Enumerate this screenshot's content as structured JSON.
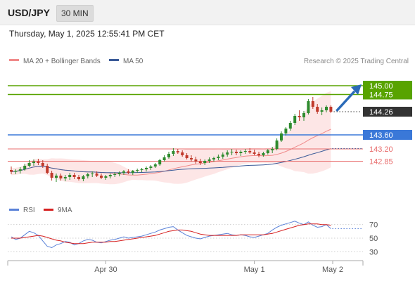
{
  "header": {
    "symbol": "USD/JPY",
    "timeframe": "30 MIN",
    "datetime": "Thursday, May 1, 2025 12:55:41 PM CET"
  },
  "credit": "Research © 2025 Trading Central",
  "colors": {
    "bull": "#2e8b2e",
    "bear": "#c0392b",
    "resistance": "#58a300",
    "pivot": "#3a78d8",
    "support": "#e86c6c",
    "ma20": "#f08a8a",
    "ma50": "#3a5a98",
    "band_fill": "#fde2e2",
    "rsi": "#5a82d8",
    "rsi_ma": "#d62020",
    "arrow": "#2a6ab8",
    "current": "#333333"
  },
  "chart_data": [
    {
      "type": "candlestick",
      "title": "",
      "legend": [
        "MA 20 + Bollinger Bands",
        "MA 50"
      ],
      "legend_placement": "top-left",
      "ylim": [
        142.0,
        145.4
      ],
      "levels": [
        {
          "value": 145.0,
          "label": "145.00",
          "kind": "resistance"
        },
        {
          "value": 144.75,
          "label": "144.75",
          "kind": "resistance"
        },
        {
          "value": 143.6,
          "label": "143.60",
          "kind": "pivot"
        },
        {
          "value": 143.2,
          "label": "143.20",
          "kind": "support"
        },
        {
          "value": 142.85,
          "label": "142.85",
          "kind": "support"
        }
      ],
      "current_price": {
        "value": 144.26,
        "label": "144.26"
      },
      "candles": [
        [
          142.6,
          142.7,
          142.48,
          142.55
        ],
        [
          142.55,
          142.62,
          142.48,
          142.58
        ],
        [
          142.58,
          142.68,
          142.5,
          142.62
        ],
        [
          142.62,
          142.78,
          142.58,
          142.72
        ],
        [
          142.72,
          142.88,
          142.68,
          142.8
        ],
        [
          142.8,
          142.9,
          142.72,
          142.84
        ],
        [
          142.84,
          142.92,
          142.74,
          142.8
        ],
        [
          142.8,
          142.88,
          142.66,
          142.72
        ],
        [
          142.72,
          142.78,
          142.48,
          142.52
        ],
        [
          142.52,
          142.58,
          142.3,
          142.38
        ],
        [
          142.38,
          142.5,
          142.26,
          142.44
        ],
        [
          142.44,
          142.5,
          142.3,
          142.36
        ],
        [
          142.36,
          142.46,
          142.28,
          142.4
        ],
        [
          142.4,
          142.52,
          142.32,
          142.46
        ],
        [
          142.46,
          142.52,
          142.34,
          142.4
        ],
        [
          142.4,
          142.46,
          142.3,
          142.34
        ],
        [
          142.34,
          142.46,
          142.28,
          142.42
        ],
        [
          142.42,
          142.52,
          142.36,
          142.48
        ],
        [
          142.48,
          142.56,
          142.4,
          142.5
        ],
        [
          142.5,
          142.56,
          142.4,
          142.44
        ],
        [
          142.44,
          142.5,
          142.34,
          142.38
        ],
        [
          142.38,
          142.46,
          142.32,
          142.42
        ],
        [
          142.42,
          142.5,
          142.36,
          142.46
        ],
        [
          142.46,
          142.54,
          142.4,
          142.48
        ],
        [
          142.48,
          142.56,
          142.42,
          142.52
        ],
        [
          142.52,
          142.6,
          142.46,
          142.56
        ],
        [
          142.56,
          142.62,
          142.48,
          142.52
        ],
        [
          142.52,
          142.6,
          142.46,
          142.58
        ],
        [
          142.58,
          142.64,
          142.52,
          142.6
        ],
        [
          142.6,
          142.66,
          142.54,
          142.62
        ],
        [
          142.62,
          142.7,
          142.56,
          142.66
        ],
        [
          142.66,
          142.74,
          142.6,
          142.7
        ],
        [
          142.7,
          142.8,
          142.66,
          142.76
        ],
        [
          142.76,
          142.92,
          142.72,
          142.88
        ],
        [
          142.88,
          143.02,
          142.84,
          142.96
        ],
        [
          142.96,
          143.12,
          142.92,
          143.06
        ],
        [
          143.06,
          143.22,
          143.0,
          143.14
        ],
        [
          143.14,
          143.2,
          143.06,
          143.1
        ],
        [
          143.1,
          143.16,
          142.98,
          143.02
        ],
        [
          143.02,
          143.08,
          142.9,
          142.94
        ],
        [
          142.94,
          143.02,
          142.84,
          142.9
        ],
        [
          142.9,
          142.98,
          142.78,
          142.84
        ],
        [
          142.84,
          142.92,
          142.74,
          142.8
        ],
        [
          142.8,
          142.9,
          142.74,
          142.86
        ],
        [
          142.86,
          142.96,
          142.8,
          142.9
        ],
        [
          142.9,
          142.98,
          142.84,
          142.94
        ],
        [
          142.94,
          143.04,
          142.88,
          142.98
        ],
        [
          142.98,
          143.1,
          142.92,
          143.04
        ],
        [
          143.04,
          143.16,
          142.98,
          143.1
        ],
        [
          143.1,
          143.2,
          143.02,
          143.12
        ],
        [
          143.12,
          143.18,
          143.02,
          143.08
        ],
        [
          143.08,
          143.16,
          143.0,
          143.12
        ],
        [
          143.12,
          143.2,
          143.06,
          143.14
        ],
        [
          143.14,
          143.22,
          143.06,
          143.1
        ],
        [
          143.1,
          143.18,
          143.02,
          143.06
        ],
        [
          143.06,
          143.12,
          142.96,
          143.02
        ],
        [
          143.02,
          143.12,
          142.98,
          143.08
        ],
        [
          143.08,
          143.2,
          143.04,
          143.16
        ],
        [
          143.16,
          143.26,
          143.08,
          143.2
        ],
        [
          143.2,
          143.5,
          143.16,
          143.44
        ],
        [
          143.44,
          143.7,
          143.4,
          143.64
        ],
        [
          143.64,
          143.82,
          143.58,
          143.78
        ],
        [
          143.78,
          144.0,
          143.72,
          143.94
        ],
        [
          143.94,
          144.2,
          143.88,
          144.14
        ],
        [
          144.14,
          144.3,
          144.0,
          144.1
        ],
        [
          144.1,
          144.28,
          144.0,
          144.22
        ],
        [
          144.22,
          144.62,
          144.18,
          144.56
        ],
        [
          144.56,
          144.68,
          144.34,
          144.4
        ],
        [
          144.4,
          144.48,
          144.2,
          144.26
        ],
        [
          144.26,
          144.38,
          144.16,
          144.3
        ],
        [
          144.3,
          144.44,
          144.24,
          144.4
        ],
        [
          144.4,
          144.44,
          144.22,
          144.26
        ]
      ]
    },
    {
      "type": "line",
      "title": "",
      "legend": [
        "RSI",
        "9MA"
      ],
      "legend_placement": "top-left",
      "ylim": [
        20,
        80
      ],
      "yticks": [
        30,
        50,
        70
      ],
      "rsi": [
        52,
        48,
        50,
        55,
        60,
        58,
        54,
        46,
        38,
        36,
        40,
        42,
        45,
        44,
        40,
        42,
        46,
        48,
        47,
        44,
        43,
        45,
        47,
        48,
        50,
        52,
        50,
        51,
        52,
        53,
        55,
        57,
        59,
        62,
        64,
        66,
        67,
        62,
        58,
        54,
        52,
        50,
        49,
        51,
        53,
        54,
        55,
        56,
        57,
        55,
        54,
        55,
        54,
        52,
        51,
        53,
        55,
        57,
        62,
        66,
        69,
        71,
        73,
        75,
        72,
        70,
        74,
        69,
        66,
        67,
        70,
        64
      ],
      "rsi_ma": [
        50,
        50,
        50,
        51,
        52,
        53,
        54,
        53,
        51,
        49,
        47,
        46,
        44,
        43,
        42,
        42,
        42,
        43,
        44,
        44,
        44,
        44,
        45,
        45,
        46,
        47,
        48,
        49,
        50,
        51,
        52,
        53,
        54,
        56,
        58,
        60,
        61,
        62,
        62,
        61,
        60,
        58,
        56,
        55,
        54,
        54,
        54,
        54,
        54,
        54,
        54,
        55,
        55,
        55,
        55,
        55,
        55,
        56,
        57,
        59,
        61,
        63,
        65,
        67,
        69,
        70,
        71,
        71,
        71,
        70,
        70,
        69
      ],
      "x_ticks": [
        "Apr 30",
        "May 1",
        "May 2"
      ]
    }
  ]
}
